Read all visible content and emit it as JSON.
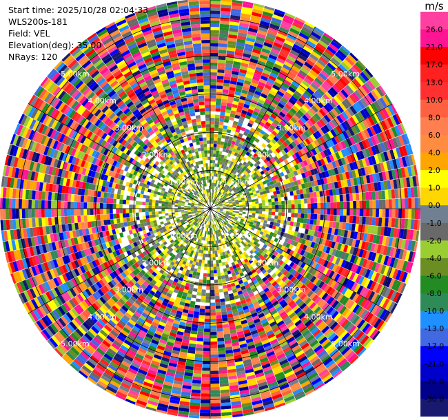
{
  "header": {
    "start_time": "Start time: 2025/10/28 02:04:33",
    "site": "WLS200s-181",
    "field": "Field: VEL",
    "elevation": "Elevation(deg): 35.00",
    "nrays": "NRays: 120"
  },
  "colorbar": {
    "unit": "m/s",
    "ticks": [
      "26.0",
      "21.0",
      "17.0",
      "13.0",
      "10.0",
      "8.0",
      "6.0",
      "4.0",
      "2.0",
      "1.0",
      "0.0",
      "-1.0",
      "-2.0",
      "-4.0",
      "-6.0",
      "-8.0",
      "-10.0",
      "-13.0",
      "-17.0",
      "-21.0",
      "-26.0",
      "-30.0"
    ],
    "colors": [
      "#ff40a0",
      "#ff1493",
      "#ff0000",
      "#ff2020",
      "#ff3030",
      "#ff6040",
      "#ff7f50",
      "#ff8c40",
      "#ffa500",
      "#ffff00",
      "#ffd700",
      "#708090",
      "#696969",
      "#9acd32",
      "#6b8e23",
      "#228b22",
      "#2e8b57",
      "#1e90ff",
      "#4169e1",
      "#0000ff",
      "#0000cd",
      "#00008b",
      "#191970"
    ]
  },
  "chart_data": {
    "type": "ppi",
    "field": "VEL",
    "unit": "m/s",
    "nrays": 120,
    "elevation_deg": 35.0,
    "range_rings_km": [
      1.0,
      2.0,
      3.0,
      4.0,
      5.0
    ],
    "range_ring_labels": [
      "1.00km",
      "2.00km",
      "3.00km",
      "4.00km",
      "5.00km"
    ],
    "max_range_km": 5.5,
    "color_scale": [
      -30.0,
      -26.0,
      -21.0,
      -17.0,
      -13.0,
      -10.0,
      -8.0,
      -6.0,
      -4.0,
      -2.0,
      -1.0,
      0.0,
      1.0,
      2.0,
      4.0,
      6.0,
      8.0,
      10.0,
      13.0,
      17.0,
      21.0,
      26.0
    ],
    "inner_region_km": 1.6,
    "inner_character": "near-zero velocities (yellow / grey / green) close to the radar; noisy multicolour beyond ~2 km"
  }
}
